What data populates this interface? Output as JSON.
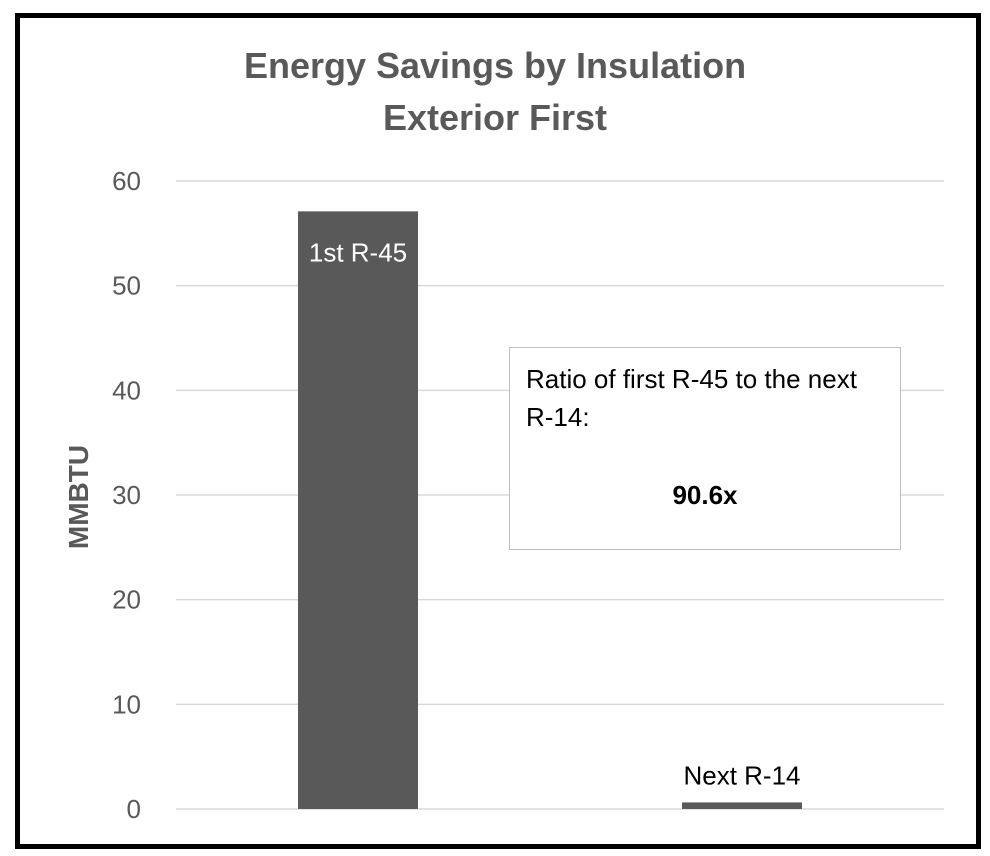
{
  "chart_data": {
    "type": "bar",
    "title": [
      "Energy Savings by Insulation",
      "Exterior First"
    ],
    "xlabel": "",
    "ylabel": "MMBTU",
    "ylim": [
      0,
      60
    ],
    "yticks": [
      0,
      10,
      20,
      30,
      40,
      50,
      60
    ],
    "categories": [
      "",
      ""
    ],
    "values": [
      57.1,
      0.63
    ],
    "data_labels": [
      "1st R-45",
      "Next R-14"
    ],
    "grid": true,
    "bar_color": "#595959",
    "grid_color": "#d9d9d9",
    "annotation": {
      "text": "Ratio of first R-45 to the next R-14:",
      "value": "90.6x"
    }
  }
}
